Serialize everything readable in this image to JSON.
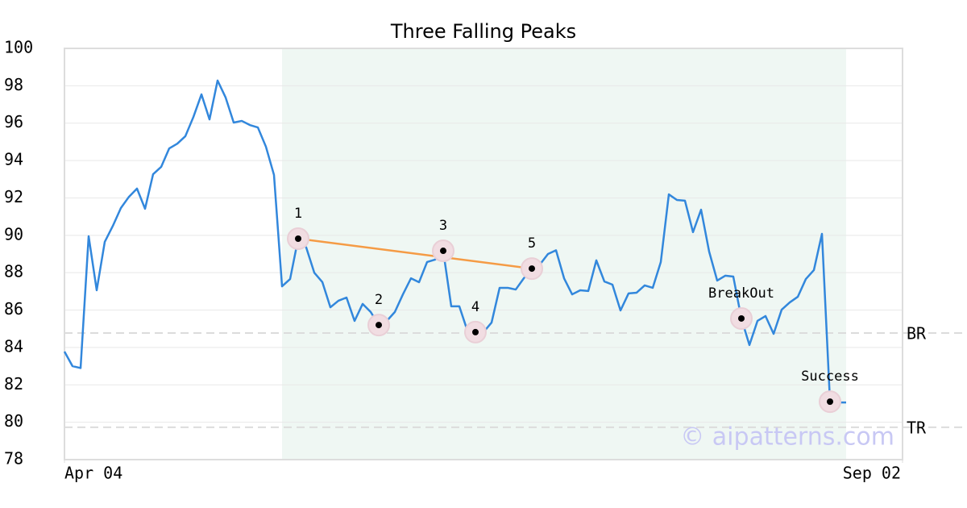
{
  "chart_data": {
    "type": "line",
    "title": "Three Falling Peaks",
    "x": [
      0,
      1,
      2,
      3,
      4,
      5,
      6,
      7,
      8,
      9,
      10,
      11,
      12,
      13,
      14,
      15,
      16,
      17,
      18,
      19,
      20,
      21,
      22,
      23,
      24,
      25,
      26,
      27,
      28,
      29,
      30,
      31,
      32,
      33,
      34,
      35,
      36,
      37,
      38,
      39,
      40,
      41,
      42,
      43,
      44,
      45,
      46,
      47,
      48,
      49,
      50,
      51,
      52,
      53,
      54,
      55,
      56,
      57,
      58,
      59,
      60,
      61,
      62,
      63,
      64,
      65,
      66,
      67,
      68,
      69,
      70,
      71,
      72,
      73,
      74,
      75,
      76,
      77,
      78,
      79,
      80,
      81,
      82,
      83,
      84,
      85,
      86,
      87,
      88,
      89,
      90,
      91,
      92,
      93,
      94,
      95,
      96,
      97
    ],
    "series": [
      {
        "color": "#3287dc",
        "values": [
          83.78,
          83.0,
          82.9,
          89.95,
          87.06,
          89.65,
          90.5,
          91.46,
          92.06,
          92.5,
          91.42,
          93.27,
          93.66,
          94.65,
          94.9,
          95.3,
          96.33,
          97.54,
          96.2,
          98.28,
          97.37,
          96.03,
          96.12,
          95.9,
          95.77,
          94.74,
          93.23,
          87.27,
          87.66,
          89.82,
          89.35,
          88.0,
          87.5,
          86.15,
          86.5,
          86.67,
          85.42,
          86.33,
          85.9,
          85.2,
          85.42,
          85.9,
          86.84,
          87.7,
          87.49,
          88.57,
          88.7,
          89.17,
          86.2,
          86.2,
          84.9,
          84.82,
          84.82,
          85.33,
          87.19,
          87.19,
          87.1,
          87.7,
          88.22,
          88.44,
          89.0,
          89.2,
          87.7,
          86.84,
          87.06,
          87.02,
          88.66,
          87.53,
          87.36,
          85.98,
          86.89,
          86.93,
          87.32,
          87.19,
          88.57,
          92.19,
          91.89,
          91.85,
          90.17,
          91.37,
          89.13,
          87.58,
          87.84,
          87.79,
          85.55,
          84.13,
          85.42,
          85.68,
          84.73,
          86.02,
          86.41,
          86.71,
          87.66,
          88.14,
          90.08,
          81.1,
          81.06,
          81.06
        ]
      }
    ],
    "xlim": [
      0,
      104
    ],
    "xticks": [
      {
        "value": 0,
        "label": "Apr 04"
      },
      {
        "value": 104,
        "label": "Sep 02"
      }
    ],
    "ylim": [
      78,
      100
    ],
    "yticks": [
      78,
      80,
      82,
      84,
      86,
      88,
      90,
      92,
      94,
      96,
      98,
      100
    ],
    "grid": true,
    "shade": [
      27,
      97
    ],
    "shade_color": "#eff7f3",
    "points": [
      {
        "label": "1",
        "x": 29,
        "y": 89.82
      },
      {
        "label": "2",
        "x": 39,
        "y": 85.2
      },
      {
        "label": "3",
        "x": 47,
        "y": 89.17
      },
      {
        "label": "4",
        "x": 51,
        "y": 84.82
      },
      {
        "label": "5",
        "x": 58,
        "y": 88.22
      },
      {
        "label": "BreakOut",
        "x": 84,
        "y": 85.55
      },
      {
        "label": "Success",
        "x": 95,
        "y": 81.1
      }
    ],
    "peak_line": {
      "color": "#f59b45",
      "x": [
        29,
        58
      ],
      "y": [
        89.82,
        88.22
      ]
    },
    "hlines": [
      {
        "value": 84.77,
        "label": "BR"
      },
      {
        "value": 79.73,
        "label": "TR"
      }
    ],
    "watermark": "© aipatterns.com"
  }
}
